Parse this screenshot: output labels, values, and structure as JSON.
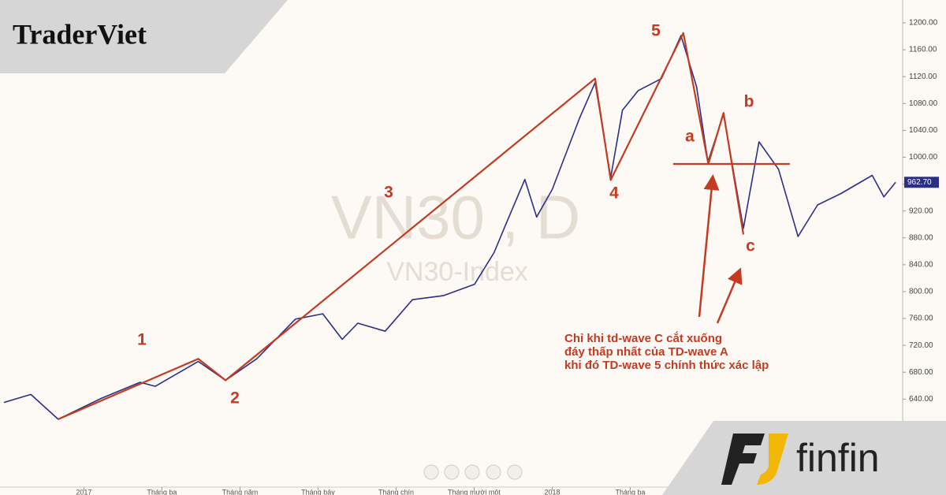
{
  "chart_data": {
    "type": "line",
    "watermark": [
      "VN30 , D",
      "VN30-Index"
    ],
    "brands": [
      "TraderViet",
      "finfin"
    ],
    "wave_labels": [
      "1",
      "2",
      "3",
      "4",
      "5",
      "a",
      "b",
      "c"
    ],
    "note": [
      "Chỉ khi td-wave C cắt xuống",
      "đáy thấp nhất của TD-wave A",
      "khi đó TD-wave 5 chính thức xác lập"
    ],
    "xlim": [
      -2.15,
      20.98
    ],
    "xticks": [
      {
        "value": 0,
        "label": "2017"
      },
      {
        "value": 2,
        "label": "Tháng ba"
      },
      {
        "value": 4,
        "label": "Tháng năm"
      },
      {
        "value": 6,
        "label": "Tháng bảy"
      },
      {
        "value": 8,
        "label": "Tháng chín"
      },
      {
        "value": 10,
        "label": "Tháng mười một"
      },
      {
        "value": 12,
        "label": "2018"
      },
      {
        "value": 14,
        "label": "Tháng ba"
      }
    ],
    "ylim": [
      509,
      1234
    ],
    "yticks": [
      {
        "value": 640,
        "label": "640.00"
      },
      {
        "value": 680,
        "label": "680.00"
      },
      {
        "value": 720,
        "label": "720.00"
      },
      {
        "value": 760,
        "label": "760.00"
      },
      {
        "value": 800,
        "label": "800.00"
      },
      {
        "value": 840,
        "label": "840.00"
      },
      {
        "value": 880,
        "label": "880.00"
      },
      {
        "value": 920,
        "label": "920.00"
      },
      {
        "value": 960,
        "label": "960.00"
      },
      {
        "value": 1000,
        "label": "1000.00"
      },
      {
        "value": 1040,
        "label": "1040.00"
      },
      {
        "value": 1080,
        "label": "1080.00"
      },
      {
        "value": 1120,
        "label": "1120.00"
      },
      {
        "value": 1160,
        "label": "1160.00"
      },
      {
        "value": 1200,
        "label": "1200.00"
      }
    ],
    "last_price": {
      "value": 962.7,
      "label": "962.70"
    },
    "series": [
      {
        "color": "#2b2f86",
        "x": [
          -2.05,
          -1.36,
          -0.66,
          0.44,
          1.44,
          1.83,
          2.93,
          3.63,
          4.43,
          5.42,
          6.12,
          6.62,
          7.02,
          7.72,
          8.42,
          9.21,
          10.01,
          10.51,
          10.81,
          11.3,
          11.6,
          12.0,
          12.7,
          13.1,
          13.5,
          13.8,
          14.2,
          14.8,
          15.3,
          15.7,
          15.99,
          16.39,
          16.9,
          17.3,
          17.8,
          18.3,
          18.8,
          19.4,
          20.2,
          20.5,
          20.8
        ],
        "values": [
          635,
          647,
          610,
          641,
          665,
          659,
          696,
          668,
          700,
          759,
          767,
          729,
          753,
          741,
          788,
          794,
          811,
          858,
          900,
          967,
          911,
          952,
          1058,
          1111,
          970,
          1070,
          1099,
          1117,
          1181,
          1105,
          993,
          1064,
          894,
          1023,
          982,
          882,
          929,
          946,
          973,
          941,
          962.7
        ]
      },
      {
        "color": "#c23b22",
        "x": [
          -0.66,
          2.93,
          3.63,
          13.1,
          13.5,
          15.36,
          16.0,
          16.39,
          16.9
        ],
        "values": [
          610,
          700,
          668,
          1117,
          966,
          1185,
          990,
          1066,
          885
        ]
      },
      {
        "color": "#c23b22",
        "x": [
          15.1,
          18.09
        ],
        "values": [
          990,
          990
        ]
      }
    ]
  }
}
